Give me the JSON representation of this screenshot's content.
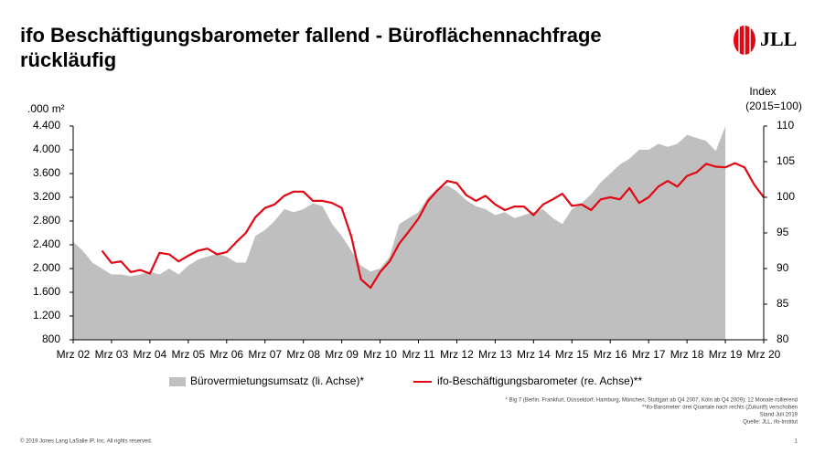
{
  "chart_data": {
    "type": "area-line",
    "title": [
      "ifo Beschäftigungsbarometer fallend - Büroflächennachfrage",
      "rückläufig"
    ],
    "y_label": ".000 m²",
    "y2_label": [
      "Index",
      "(2015=100)"
    ],
    "x": [
      2002,
      2002.25,
      2002.5,
      2002.75,
      2003,
      2003.25,
      2003.5,
      2003.75,
      2004,
      2004.25,
      2004.5,
      2004.75,
      2005,
      2005.25,
      2005.5,
      2005.75,
      2006,
      2006.25,
      2006.5,
      2006.75,
      2007,
      2007.25,
      2007.5,
      2007.75,
      2008,
      2008.25,
      2008.5,
      2008.75,
      2009,
      2009.25,
      2009.5,
      2009.75,
      2010,
      2010.25,
      2010.5,
      2010.75,
      2011,
      2011.25,
      2011.5,
      2011.75,
      2012,
      2012.25,
      2012.5,
      2012.75,
      2013,
      2013.25,
      2013.5,
      2013.75,
      2014,
      2014.25,
      2014.5,
      2014.75,
      2015,
      2015.25,
      2015.5,
      2015.75,
      2016,
      2016.25,
      2016.5,
      2016.75,
      2017,
      2017.25,
      2017.5,
      2017.75,
      2018,
      2018.25,
      2018.5,
      2018.75,
      2019,
      2019.25,
      2019.5,
      2019.75,
      2020
    ],
    "series": [
      {
        "name": "Bürovermietungsumsatz (li. Achse)*",
        "kind": "area",
        "color": "#bfbfbf",
        "values": [
          2450,
          2300,
          2100,
          2000,
          1900,
          1900,
          1870,
          1900,
          1950,
          1900,
          2000,
          1900,
          2050,
          2150,
          2200,
          2250,
          2200,
          2100,
          2100,
          2550,
          2650,
          2800,
          3000,
          2950,
          3000,
          3100,
          3050,
          2750,
          2550,
          2300,
          2050,
          1950,
          2000,
          2200,
          2750,
          2850,
          2950,
          3200,
          3350,
          3400,
          3300,
          3150,
          3050,
          3000,
          2900,
          2950,
          2850,
          2900,
          2950,
          3000,
          2850,
          2750,
          3000,
          3100,
          3250,
          3450,
          3600,
          3750,
          3850,
          4000,
          4000,
          4100,
          4050,
          4100,
          4250,
          4200,
          4150,
          3980,
          4400,
          null,
          null,
          null,
          null
        ]
      },
      {
        "name": "ifo-Beschäftigungsbarometer (re. Achse)**",
        "kind": "line",
        "axis": "y2",
        "color": "#e30613",
        "values": [
          null,
          null,
          null,
          92.5,
          90.8,
          91,
          89.5,
          89.8,
          89.3,
          92.2,
          92,
          91,
          91.8,
          92.5,
          92.8,
          92,
          92.3,
          93.7,
          95,
          97.2,
          98.5,
          99,
          100.2,
          100.8,
          100.8,
          99.5,
          99.5,
          99.2,
          98.5,
          94.5,
          88.5,
          87.3,
          89.5,
          91,
          93.5,
          95.2,
          97,
          99.5,
          101,
          102.3,
          102,
          100.3,
          99.5,
          100.2,
          99,
          98.2,
          98.7,
          98.7,
          97.5,
          99,
          99.7,
          100.5,
          98.8,
          99,
          98.2,
          99.7,
          100,
          99.7,
          101.3,
          99.2,
          100,
          101.5,
          102.3,
          101.5,
          103,
          103.5,
          104.7,
          104.3,
          104.2,
          104.8,
          104.2,
          101.8,
          100
        ]
      }
    ],
    "xlim": [
      2002,
      2020
    ],
    "xticks": [
      {
        "value": 2002,
        "label": "Mrz 02"
      },
      {
        "value": 2003,
        "label": "Mrz 03"
      },
      {
        "value": 2004,
        "label": "Mrz 04"
      },
      {
        "value": 2005,
        "label": "Mrz 05"
      },
      {
        "value": 2006,
        "label": "Mrz 06"
      },
      {
        "value": 2007,
        "label": "Mrz 07"
      },
      {
        "value": 2008,
        "label": "Mrz 08"
      },
      {
        "value": 2009,
        "label": "Mrz 09"
      },
      {
        "value": 2010,
        "label": "Mrz 10"
      },
      {
        "value": 2011,
        "label": "Mrz 11"
      },
      {
        "value": 2012,
        "label": "Mrz 12"
      },
      {
        "value": 2013,
        "label": "Mrz 13"
      },
      {
        "value": 2014,
        "label": "Mrz 14"
      },
      {
        "value": 2015,
        "label": "Mrz 15"
      },
      {
        "value": 2016,
        "label": "Mrz 16"
      },
      {
        "value": 2017,
        "label": "Mrz 17"
      },
      {
        "value": 2018,
        "label": "Mrz 18"
      },
      {
        "value": 2019,
        "label": "Mrz 19"
      },
      {
        "value": 2020,
        "label": "Mrz 20"
      }
    ],
    "ylim": [
      800,
      4400
    ],
    "yticks": [
      800,
      {
        "value": 1200,
        "label": "1.200"
      },
      {
        "value": 1600,
        "label": "1.600"
      },
      {
        "value": 2000,
        "label": "2.000"
      },
      {
        "value": 2400,
        "label": "2.400"
      },
      {
        "value": 2800,
        "label": "2.800"
      },
      {
        "value": 3200,
        "label": "3.200"
      },
      {
        "value": 3600,
        "label": "3.600"
      },
      {
        "value": 4000,
        "label": "4.000"
      },
      {
        "value": 4400,
        "label": "4.400"
      }
    ],
    "y2lim": [
      80,
      110
    ],
    "y2ticks": [
      80,
      85,
      90,
      95,
      100,
      105,
      110
    ],
    "grid": false
  },
  "slide": {
    "logo": "JLL",
    "footnotes": [
      "* Big 7 (Berlin, Frankfurt, Düsseldorf, Hamburg, München,  Stuttgart ab Q4 2007, Köln ab Q4 2009); 12 Monate rollierend",
      "**ifo-Barometer:  drei Quartale nach rechts (Zukunft)  verschoben",
      "Stand Juli 2019",
      "Quelle: JLL, ifo-Institut"
    ],
    "copyright": "© 2019 Jones Lang LaSalle IP, Inc. All rights reserved.",
    "page_number": "1"
  }
}
